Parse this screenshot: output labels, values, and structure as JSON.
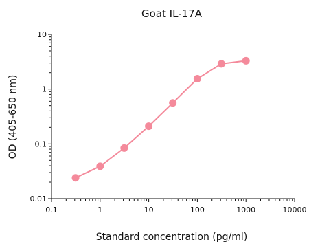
{
  "chart_data": {
    "type": "line",
    "title": "Goat IL-17A",
    "xlabel": "Standard concentration (pg/ml)",
    "ylabel": "OD (405-650 nm)",
    "xscale": "log",
    "yscale": "log",
    "xlim": [
      0.1,
      10000
    ],
    "ylim": [
      0.01,
      10
    ],
    "xticks": [
      0.1,
      1,
      10,
      100,
      1000,
      10000
    ],
    "xtick_labels": [
      "0.1",
      "1",
      "10",
      "100",
      "1000",
      "10000"
    ],
    "yticks": [
      0.01,
      0.1,
      1,
      10
    ],
    "ytick_labels": [
      "0.01",
      "0.1",
      "1",
      "10"
    ],
    "grid": false,
    "color": "#f48a9b",
    "series": [
      {
        "x": [
          0.3125,
          1,
          3.125,
          10,
          31.25,
          100,
          312.5,
          1000
        ],
        "y": [
          0.024,
          0.039,
          0.084,
          0.21,
          0.56,
          1.55,
          2.9,
          3.3
        ]
      }
    ]
  }
}
